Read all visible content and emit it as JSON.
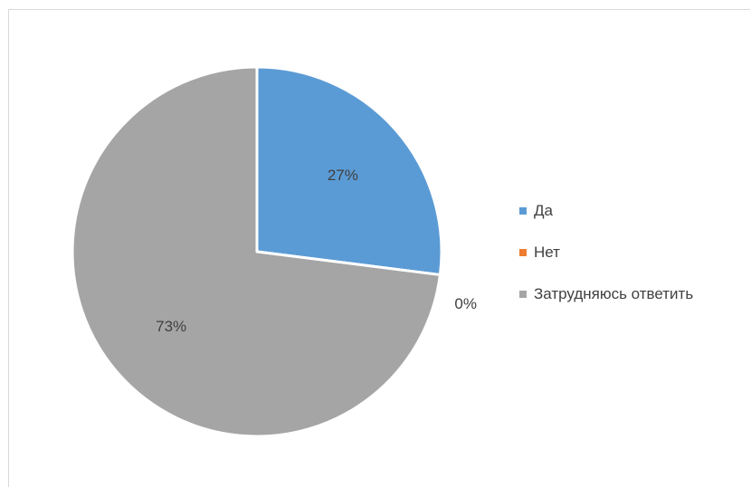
{
  "chart_data": {
    "type": "pie",
    "title": "",
    "categories": [
      "Да",
      "Нет",
      "Затрудняюсь ответить"
    ],
    "values": [
      27,
      0,
      73
    ],
    "labels": [
      "27%",
      "0%",
      "73%"
    ],
    "colors": [
      "#5b9bd5",
      "#ed7d31",
      "#a5a5a5"
    ],
    "legend_position": "right"
  }
}
